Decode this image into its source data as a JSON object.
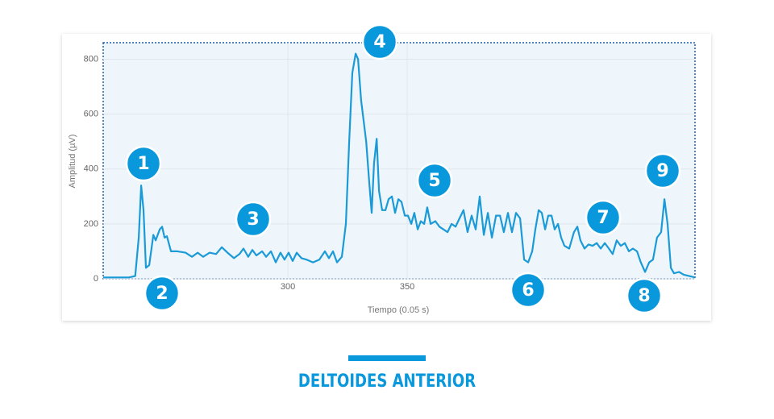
{
  "chart_data": {
    "type": "line",
    "title": "DELTOIDES ANTERIOR",
    "x_label": "Tiempo (0.05 s)",
    "y_label": "Amplitud (µV)",
    "annotations": [
      "1",
      "2",
      "3",
      "4",
      "5",
      "6",
      "7",
      "8",
      "9"
    ],
    "xlim": [
      222.6,
      470.6
    ],
    "xticks": [
      300,
      350
    ],
    "ylim": [
      0,
      860
    ],
    "yticks": [
      0,
      200,
      400,
      600,
      800
    ],
    "grid": true,
    "series": [
      {
        "name": "Deltoides anterior",
        "color": "#1a9ad6",
        "x": [
          222.6,
          233.4,
          236,
          237.5,
          238.5,
          239.5,
          240.5,
          241.9,
          243.6,
          244.6,
          246.3,
          247.3,
          248.3,
          249.3,
          251,
          253.7,
          257.1,
          259.8,
          262.2,
          264.5,
          267.2,
          269.9,
          272.3,
          274.7,
          277.4,
          279.7,
          281.4,
          283.4,
          285.1,
          286.8,
          289.2,
          290.9,
          292.9,
          294.9,
          296.9,
          298.6,
          300.3,
          302,
          303.7,
          305.7,
          307.8,
          310.5,
          313.2,
          315.5,
          317.2,
          318.9,
          320.6,
          322.6,
          324.3,
          325.7,
          327,
          328.4,
          329.4,
          330.7,
          332.8,
          334.1,
          335.1,
          336.1,
          337.2,
          338.2,
          339.5,
          340.9,
          342.2,
          343.6,
          344.9,
          346.3,
          347.6,
          349,
          350.3,
          351.7,
          353,
          354.4,
          355.7,
          357.1,
          358.4,
          359.8,
          361.8,
          363.5,
          365.2,
          366.9,
          368.6,
          370.3,
          371.9,
          373.6,
          375.3,
          377,
          378.7,
          380.4,
          382.1,
          383.8,
          385.5,
          387.2,
          388.9,
          390.5,
          392.2,
          393.9,
          395.6,
          397.3,
          399,
          400.7,
          402.4,
          403.7,
          405.1,
          406.4,
          407.8,
          409.1,
          410.5,
          411.8,
          413.2,
          414.5,
          415.9,
          417.9,
          419.9,
          421.3,
          422.6,
          424.3,
          426,
          427.7,
          429.4,
          431.1,
          432.8,
          434.5,
          436.1,
          437.8,
          439.5,
          441.2,
          442.9,
          444.6,
          446.3,
          447.9,
          449.7,
          451.4,
          453,
          454.7,
          456.4,
          457.8,
          459.1,
          460.5,
          461.8,
          463.9,
          465.9,
          468.2,
          470.6
        ],
        "values": [
          5,
          5,
          10,
          150,
          340,
          250,
          40,
          50,
          160,
          140,
          180,
          190,
          150,
          155,
          100,
          100,
          95,
          80,
          95,
          80,
          95,
          90,
          115,
          95,
          75,
          90,
          110,
          80,
          105,
          85,
          100,
          80,
          100,
          60,
          95,
          70,
          95,
          65,
          95,
          75,
          70,
          60,
          70,
          100,
          75,
          100,
          60,
          80,
          200,
          500,
          750,
          820,
          800,
          650,
          500,
          350,
          240,
          420,
          510,
          320,
          250,
          250,
          290,
          300,
          240,
          290,
          280,
          230,
          230,
          200,
          240,
          180,
          210,
          200,
          260,
          200,
          210,
          190,
          180,
          170,
          200,
          190,
          220,
          250,
          170,
          230,
          180,
          300,
          160,
          240,
          150,
          230,
          230,
          170,
          240,
          170,
          240,
          220,
          70,
          60,
          100,
          180,
          250,
          240,
          180,
          230,
          230,
          180,
          200,
          150,
          120,
          110,
          170,
          190,
          140,
          110,
          125,
          120,
          130,
          110,
          130,
          110,
          90,
          140,
          120,
          130,
          100,
          110,
          100,
          60,
          25,
          60,
          70,
          150,
          170,
          290,
          200,
          40,
          20,
          25,
          15,
          10,
          5
        ]
      }
    ]
  }
}
